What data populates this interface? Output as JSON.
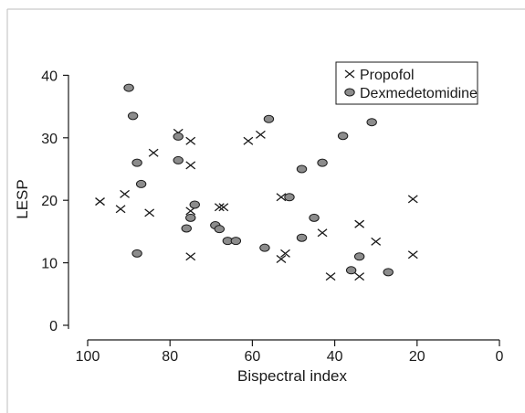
{
  "chart_data": {
    "type": "scatter",
    "title": "",
    "xlabel": "Bispectral index",
    "ylabel": "LESP",
    "xlim": [
      100,
      0
    ],
    "ylim": [
      0,
      42
    ],
    "xticks": [
      "100",
      "80",
      "60",
      "40",
      "20",
      "0"
    ],
    "yticks": [
      "0",
      "10",
      "20",
      "30",
      "40"
    ],
    "grid": false,
    "legend_position": "top-right",
    "series": [
      {
        "name": "Propofol",
        "marker": "x",
        "color": "#1a1a1a",
        "points": [
          [
            97,
            19.8
          ],
          [
            92,
            18.6
          ],
          [
            91,
            21
          ],
          [
            85,
            18
          ],
          [
            84,
            27.6
          ],
          [
            78,
            30.8
          ],
          [
            75,
            29.5
          ],
          [
            75,
            25.6
          ],
          [
            75,
            18.3
          ],
          [
            75,
            11
          ],
          [
            68,
            18.9
          ],
          [
            67,
            18.9
          ],
          [
            61,
            29.5
          ],
          [
            58,
            30.5
          ],
          [
            53,
            20.5
          ],
          [
            53,
            10.6
          ],
          [
            52,
            11.5
          ],
          [
            43,
            14.8
          ],
          [
            41,
            7.8
          ],
          [
            34,
            16.2
          ],
          [
            34,
            7.8
          ],
          [
            30,
            13.4
          ],
          [
            21,
            20.2
          ],
          [
            21,
            11.3
          ]
        ]
      },
      {
        "name": "Dexmedetomidine",
        "marker": "circle",
        "color": "#8c8c8c",
        "points": [
          [
            90,
            38
          ],
          [
            89,
            33.5
          ],
          [
            88,
            26
          ],
          [
            87,
            22.6
          ],
          [
            88,
            11.5
          ],
          [
            78,
            30.2
          ],
          [
            78,
            26.4
          ],
          [
            76,
            15.5
          ],
          [
            75,
            17.2
          ],
          [
            74,
            19.3
          ],
          [
            69,
            16
          ],
          [
            68,
            15.4
          ],
          [
            66,
            13.5
          ],
          [
            64,
            13.5
          ],
          [
            56,
            33
          ],
          [
            57,
            12.4
          ],
          [
            51,
            20.5
          ],
          [
            48,
            25
          ],
          [
            48,
            14
          ],
          [
            45,
            17.2
          ],
          [
            43,
            26
          ],
          [
            38,
            30.3
          ],
          [
            36,
            8.8
          ],
          [
            34,
            11
          ],
          [
            31,
            32.5
          ],
          [
            27,
            8.5
          ]
        ]
      }
    ]
  }
}
